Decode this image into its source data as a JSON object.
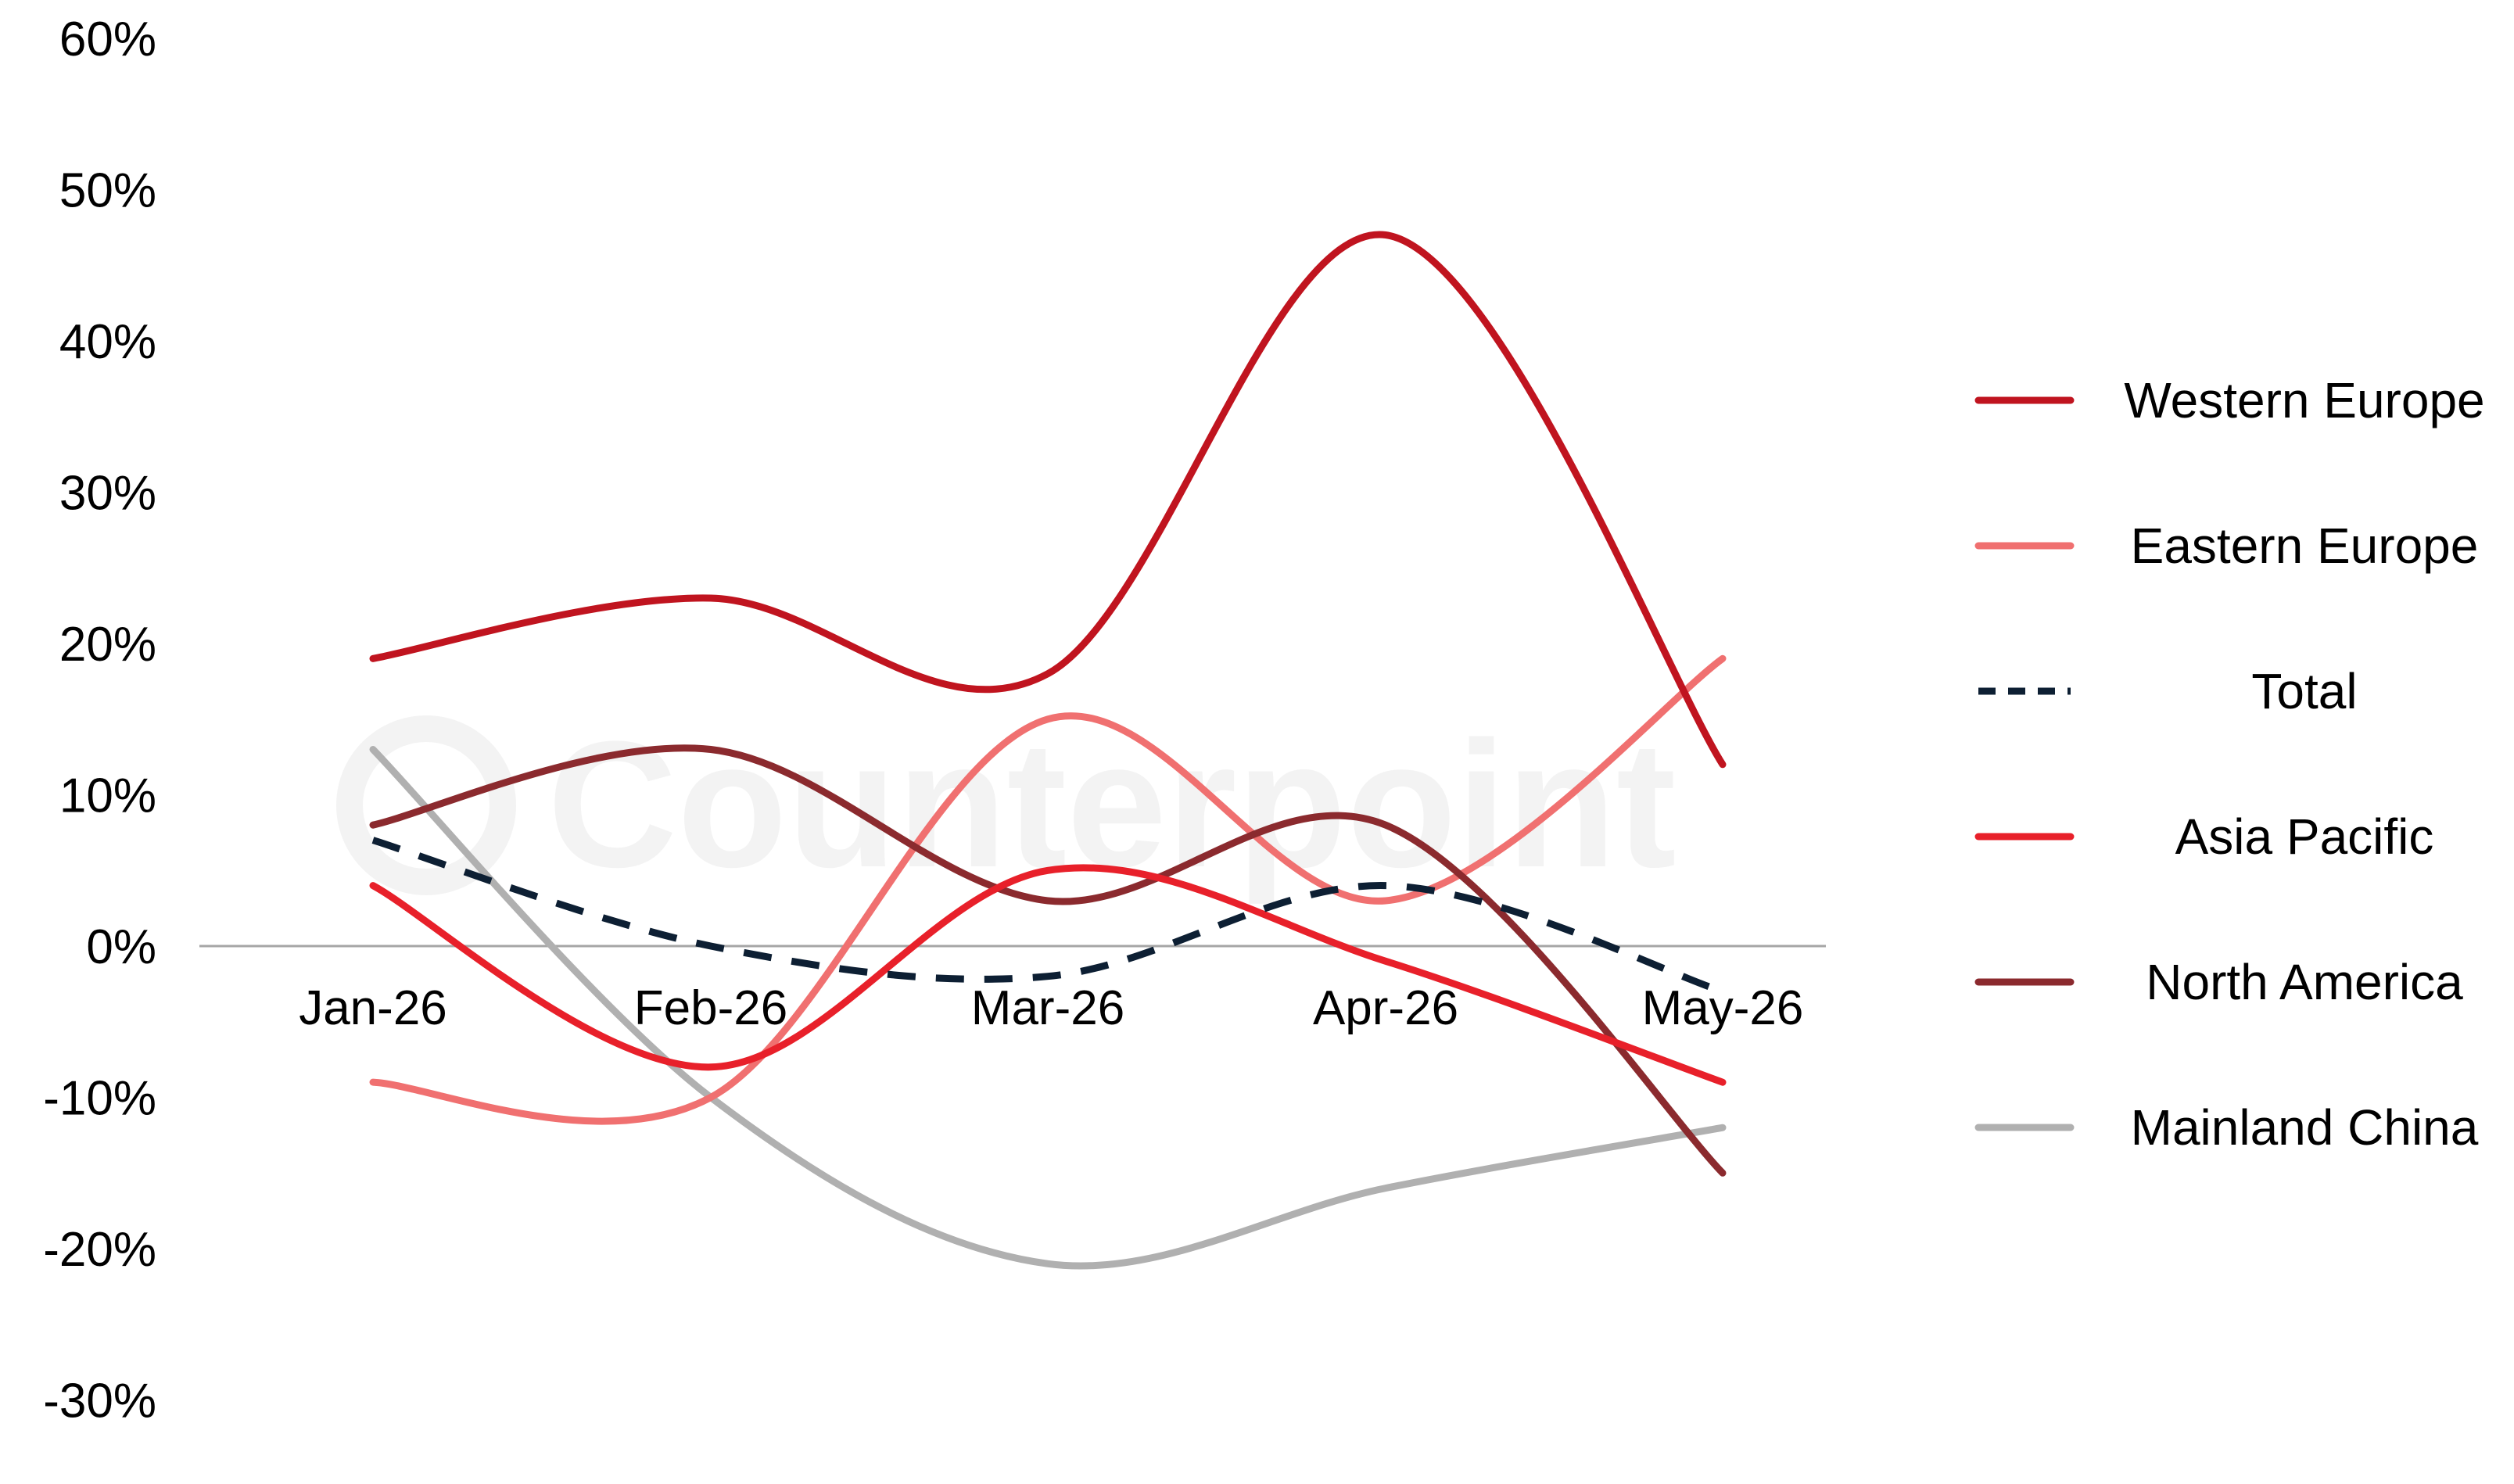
{
  "watermark": {
    "text": "Counterpoint",
    "color": "#f3f3f3"
  },
  "chart_data": {
    "type": "line",
    "title": "",
    "xlabel": "",
    "ylabel": "",
    "categories": [
      "Jan-26",
      "Feb-26",
      "Mar-26",
      "Apr-26",
      "May-26"
    ],
    "y_tick_labels": [
      "60%",
      "50%",
      "40%",
      "30%",
      "20%",
      "10%",
      "0%",
      "-10%",
      "-20%",
      "-30%"
    ],
    "y_ticks": [
      60,
      50,
      40,
      30,
      20,
      10,
      0,
      -10,
      -20,
      -30
    ],
    "ylim": [
      -30,
      60
    ],
    "y_unit": "%",
    "zero_line": true,
    "grid": false,
    "legend_position": "right",
    "series": [
      {
        "name": "Western Europe",
        "values": [
          19,
          23,
          18,
          47,
          12
        ],
        "color": "#c0141f",
        "dashed": false
      },
      {
        "name": "Eastern Europe",
        "values": [
          -9,
          -10,
          15,
          3,
          19
        ],
        "color": "#f07070",
        "dashed": false
      },
      {
        "name": "Total",
        "values": [
          7,
          0,
          -2,
          4,
          -3
        ],
        "color": "#0d1f33",
        "dashed": true
      },
      {
        "name": "Asia Pacific",
        "values": [
          4,
          -8,
          5,
          -1,
          -9
        ],
        "color": "#e8202a",
        "dashed": false
      },
      {
        "name": "North America",
        "values": [
          8,
          13,
          3,
          8,
          -15
        ],
        "color": "#8b2a2e",
        "dashed": false
      },
      {
        "name": "Mainland China",
        "values": [
          13,
          -10,
          -21,
          -16,
          -12
        ],
        "color": "#b0b0b0",
        "dashed": false
      }
    ]
  }
}
